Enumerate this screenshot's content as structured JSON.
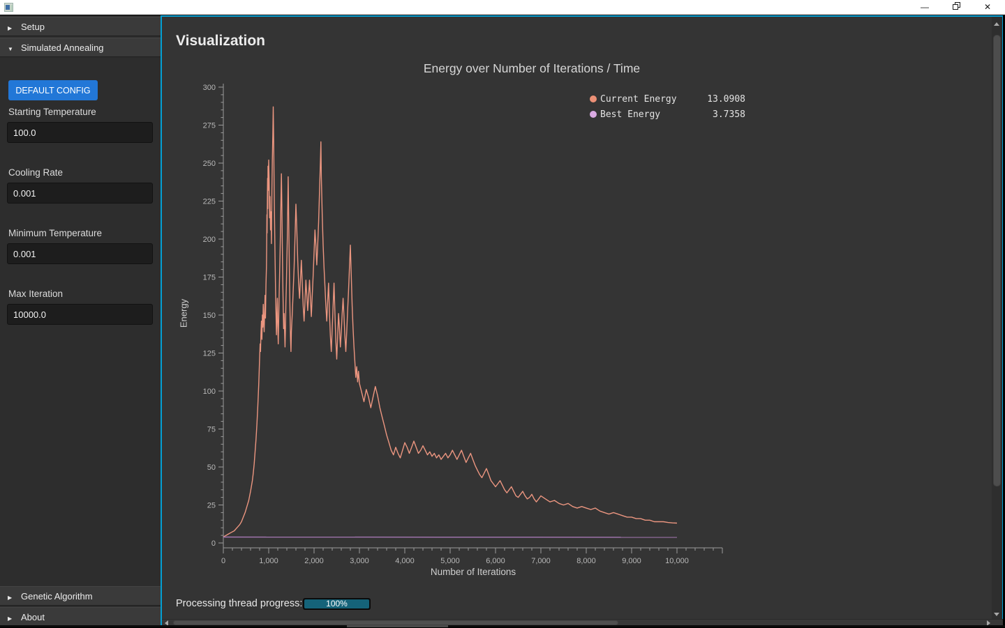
{
  "window": {
    "minimize_glyph": "—",
    "close_glyph": "✕"
  },
  "sidebar": {
    "sections": [
      {
        "label": "Setup",
        "arrow": "▶"
      },
      {
        "label": "Simulated Annealing",
        "arrow": "▼"
      },
      {
        "label": "Genetic Algorithm",
        "arrow": "▶"
      },
      {
        "label": "About",
        "arrow": "▶"
      }
    ],
    "default_config_button": "DEFAULT CONFIG",
    "fields": [
      {
        "label": "Starting Temperature",
        "value": "100.0"
      },
      {
        "label": "Cooling Rate",
        "value": "0.001"
      },
      {
        "label": "Minimum Temperature",
        "value": "0.001"
      },
      {
        "label": "Max Iteration",
        "value": "10000.0"
      }
    ]
  },
  "main": {
    "page_title": "Visualization",
    "progress_label": "Processing thread progress:",
    "progress_text": "100%",
    "progress_percent": 100
  },
  "chart_data": {
    "type": "line",
    "title": "Energy over Number of Iterations / Time",
    "xlabel": "Number of Iterations",
    "ylabel": "Energy",
    "xlim": [
      0,
      11000
    ],
    "ylim": [
      0,
      300
    ],
    "x_major": 1000,
    "x_minor": 200,
    "y_major": 25,
    "y_minor": 5,
    "grid": false,
    "legend_position": "top-right",
    "x_tick_labels": [
      "0",
      "1,000",
      "2,000",
      "3,000",
      "4,000",
      "5,000",
      "6,000",
      "7,000",
      "8,000",
      "9,000",
      "10,000"
    ],
    "y_tick_labels": [
      "0",
      "25",
      "50",
      "75",
      "100",
      "125",
      "150",
      "175",
      "200",
      "225",
      "250",
      "275",
      "300"
    ],
    "legend": [
      {
        "name": "Current Energy",
        "value": "13.0908",
        "dot_color": "#ec9076"
      },
      {
        "name": "Best Energy",
        "value": "3.7358",
        "dot_color": "#d9a9e2"
      }
    ],
    "series": [
      {
        "name": "Current Energy",
        "color": "#ec9680",
        "points": [
          [
            0,
            4
          ],
          [
            60,
            5
          ],
          [
            120,
            6
          ],
          [
            180,
            7
          ],
          [
            240,
            8
          ],
          [
            300,
            10
          ],
          [
            360,
            12
          ],
          [
            400,
            14
          ],
          [
            440,
            17
          ],
          [
            480,
            20
          ],
          [
            520,
            24
          ],
          [
            560,
            28
          ],
          [
            600,
            34
          ],
          [
            640,
            41
          ],
          [
            660,
            46
          ],
          [
            680,
            52
          ],
          [
            700,
            60
          ],
          [
            720,
            68
          ],
          [
            740,
            78
          ],
          [
            760,
            90
          ],
          [
            780,
            104
          ],
          [
            790,
            112
          ],
          [
            800,
            122
          ],
          [
            810,
            131
          ],
          [
            820,
            126
          ],
          [
            830,
            138
          ],
          [
            840,
            146
          ],
          [
            850,
            134
          ],
          [
            860,
            150
          ],
          [
            870,
            142
          ],
          [
            880,
            157
          ],
          [
            890,
            147
          ],
          [
            900,
            139
          ],
          [
            910,
            152
          ],
          [
            920,
            163
          ],
          [
            930,
            148
          ],
          [
            940,
            170
          ],
          [
            950,
            182
          ],
          [
            955,
            196
          ],
          [
            960,
            216
          ],
          [
            965,
            204
          ],
          [
            970,
            228
          ],
          [
            975,
            240
          ],
          [
            980,
            220
          ],
          [
            985,
            248
          ],
          [
            990,
            232
          ],
          [
            1000,
            252
          ],
          [
            1010,
            238
          ],
          [
            1020,
            214
          ],
          [
            1030,
            228
          ],
          [
            1040,
            206
          ],
          [
            1050,
            218
          ],
          [
            1060,
            197
          ],
          [
            1070,
            232
          ],
          [
            1080,
            252
          ],
          [
            1090,
            268
          ],
          [
            1100,
            287
          ],
          [
            1110,
            262
          ],
          [
            1120,
            235
          ],
          [
            1130,
            212
          ],
          [
            1140,
            188
          ],
          [
            1150,
            167
          ],
          [
            1160,
            152
          ],
          [
            1170,
            137
          ],
          [
            1180,
            149
          ],
          [
            1190,
            161
          ],
          [
            1200,
            143
          ],
          [
            1210,
            131
          ],
          [
            1220,
            146
          ],
          [
            1230,
            161
          ],
          [
            1240,
            176
          ],
          [
            1250,
            191
          ],
          [
            1260,
            207
          ],
          [
            1270,
            226
          ],
          [
            1280,
            243
          ],
          [
            1290,
            221
          ],
          [
            1300,
            196
          ],
          [
            1310,
            171
          ],
          [
            1320,
            156
          ],
          [
            1330,
            141
          ],
          [
            1340,
            151
          ],
          [
            1350,
            139
          ],
          [
            1360,
            129
          ],
          [
            1370,
            143
          ],
          [
            1380,
            159
          ],
          [
            1390,
            171
          ],
          [
            1400,
            186
          ],
          [
            1410,
            201
          ],
          [
            1420,
            221
          ],
          [
            1430,
            241
          ],
          [
            1440,
            216
          ],
          [
            1450,
            191
          ],
          [
            1460,
            171
          ],
          [
            1470,
            151
          ],
          [
            1480,
            136
          ],
          [
            1490,
            126
          ],
          [
            1500,
            139
          ],
          [
            1520,
            151
          ],
          [
            1540,
            166
          ],
          [
            1560,
            181
          ],
          [
            1580,
            201
          ],
          [
            1600,
            223
          ],
          [
            1620,
            206
          ],
          [
            1640,
            186
          ],
          [
            1660,
            171
          ],
          [
            1680,
            161
          ],
          [
            1700,
            173
          ],
          [
            1720,
            186
          ],
          [
            1740,
            171
          ],
          [
            1760,
            156
          ],
          [
            1780,
            146
          ],
          [
            1800,
            159
          ],
          [
            1820,
            173
          ],
          [
            1840,
            163
          ],
          [
            1860,
            153
          ],
          [
            1880,
            163
          ],
          [
            1900,
            173
          ],
          [
            1920,
            161
          ],
          [
            1940,
            149
          ],
          [
            1960,
            163
          ],
          [
            1980,
            176
          ],
          [
            2000,
            191
          ],
          [
            2020,
            206
          ],
          [
            2040,
            196
          ],
          [
            2060,
            183
          ],
          [
            2080,
            196
          ],
          [
            2100,
            211
          ],
          [
            2120,
            231
          ],
          [
            2140,
            251
          ],
          [
            2150,
            264
          ],
          [
            2160,
            241
          ],
          [
            2180,
            216
          ],
          [
            2200,
            196
          ],
          [
            2220,
            181
          ],
          [
            2240,
            169
          ],
          [
            2260,
            156
          ],
          [
            2280,
            146
          ],
          [
            2300,
            159
          ],
          [
            2320,
            171
          ],
          [
            2340,
            151
          ],
          [
            2360,
            136
          ],
          [
            2380,
            126
          ],
          [
            2400,
            141
          ],
          [
            2420,
            156
          ],
          [
            2440,
            171
          ],
          [
            2460,
            151
          ],
          [
            2480,
            133
          ],
          [
            2500,
            121
          ],
          [
            2520,
            136
          ],
          [
            2540,
            151
          ],
          [
            2560,
            141
          ],
          [
            2580,
            129
          ],
          [
            2600,
            139
          ],
          [
            2620,
            151
          ],
          [
            2640,
            161
          ],
          [
            2660,
            149
          ],
          [
            2680,
            136
          ],
          [
            2700,
            126
          ],
          [
            2720,
            139
          ],
          [
            2740,
            153
          ],
          [
            2760,
            166
          ],
          [
            2780,
            181
          ],
          [
            2800,
            196
          ],
          [
            2820,
            176
          ],
          [
            2840,
            156
          ],
          [
            2860,
            141
          ],
          [
            2880,
            129
          ],
          [
            2900,
            119
          ],
          [
            2920,
            109
          ],
          [
            2940,
            116
          ],
          [
            2960,
            106
          ],
          [
            2980,
            113
          ],
          [
            3000,
            105
          ],
          [
            3050,
            99
          ],
          [
            3100,
            93
          ],
          [
            3150,
            101
          ],
          [
            3200,
            96
          ],
          [
            3250,
            89
          ],
          [
            3300,
            96
          ],
          [
            3350,
            103
          ],
          [
            3400,
            97
          ],
          [
            3450,
            89
          ],
          [
            3500,
            83
          ],
          [
            3550,
            77
          ],
          [
            3600,
            71
          ],
          [
            3650,
            66
          ],
          [
            3700,
            61
          ],
          [
            3750,
            58
          ],
          [
            3800,
            63
          ],
          [
            3850,
            59
          ],
          [
            3900,
            56
          ],
          [
            3950,
            61
          ],
          [
            4000,
            66
          ],
          [
            4050,
            63
          ],
          [
            4100,
            59
          ],
          [
            4150,
            63
          ],
          [
            4200,
            67
          ],
          [
            4250,
            63
          ],
          [
            4300,
            59
          ],
          [
            4350,
            61
          ],
          [
            4400,
            64
          ],
          [
            4450,
            61
          ],
          [
            4500,
            58
          ],
          [
            4550,
            60
          ],
          [
            4600,
            57
          ],
          [
            4650,
            59
          ],
          [
            4700,
            56
          ],
          [
            4750,
            58
          ],
          [
            4800,
            55
          ],
          [
            4850,
            57
          ],
          [
            4900,
            59
          ],
          [
            4950,
            56
          ],
          [
            5000,
            58
          ],
          [
            5050,
            61
          ],
          [
            5100,
            58
          ],
          [
            5150,
            55
          ],
          [
            5200,
            58
          ],
          [
            5250,
            61
          ],
          [
            5300,
            57
          ],
          [
            5350,
            53
          ],
          [
            5400,
            56
          ],
          [
            5450,
            59
          ],
          [
            5500,
            55
          ],
          [
            5550,
            51
          ],
          [
            5600,
            48
          ],
          [
            5650,
            45
          ],
          [
            5700,
            43
          ],
          [
            5750,
            46
          ],
          [
            5800,
            49
          ],
          [
            5850,
            45
          ],
          [
            5900,
            41
          ],
          [
            5950,
            39
          ],
          [
            6000,
            37
          ],
          [
            6050,
            39
          ],
          [
            6100,
            41
          ],
          [
            6150,
            38
          ],
          [
            6200,
            35
          ],
          [
            6250,
            33
          ],
          [
            6300,
            35
          ],
          [
            6350,
            37
          ],
          [
            6400,
            34
          ],
          [
            6450,
            31
          ],
          [
            6500,
            30
          ],
          [
            6550,
            32
          ],
          [
            6600,
            34
          ],
          [
            6650,
            31
          ],
          [
            6700,
            29
          ],
          [
            6750,
            30
          ],
          [
            6800,
            32
          ],
          [
            6850,
            29
          ],
          [
            6900,
            27
          ],
          [
            6950,
            29
          ],
          [
            7000,
            31
          ],
          [
            7100,
            29
          ],
          [
            7200,
            27
          ],
          [
            7300,
            28
          ],
          [
            7400,
            26
          ],
          [
            7500,
            25
          ],
          [
            7600,
            26
          ],
          [
            7700,
            24
          ],
          [
            7800,
            23
          ],
          [
            7900,
            24
          ],
          [
            8000,
            23
          ],
          [
            8100,
            22
          ],
          [
            8200,
            23
          ],
          [
            8300,
            21
          ],
          [
            8400,
            20
          ],
          [
            8500,
            19
          ],
          [
            8600,
            20
          ],
          [
            8700,
            19
          ],
          [
            8800,
            18
          ],
          [
            8900,
            17
          ],
          [
            9000,
            17
          ],
          [
            9100,
            16
          ],
          [
            9200,
            16
          ],
          [
            9300,
            15
          ],
          [
            9400,
            15
          ],
          [
            9500,
            14
          ],
          [
            9600,
            14
          ],
          [
            9700,
            14
          ],
          [
            9800,
            13.5
          ],
          [
            9900,
            13.2
          ],
          [
            10000,
            13.09
          ]
        ]
      },
      {
        "name": "Best Energy",
        "color": "#a678b4",
        "points": [
          [
            0,
            3.9
          ],
          [
            10000,
            3.74
          ]
        ]
      }
    ]
  }
}
